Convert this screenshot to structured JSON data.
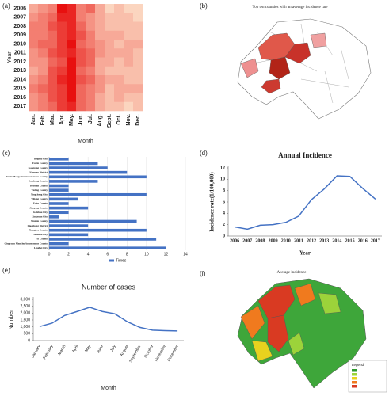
{
  "chart_data": [
    {
      "type": "heatmap",
      "panel": "(a)",
      "xlabel": "Month",
      "ylabel": "Year",
      "x": [
        "Jan.",
        "Feb.",
        "Mar.",
        "Apr.",
        "May.",
        "Jun.",
        "Jul.",
        "Aug.",
        "Sept.",
        "Oct.",
        "Nov.",
        "Dec."
      ],
      "y": [
        "2006",
        "2007",
        "2008",
        "2009",
        "2010",
        "2011",
        "2012",
        "2013",
        "2014",
        "2015",
        "2016",
        "2017"
      ],
      "z": [
        [
          3,
          4,
          5,
          10,
          9,
          5,
          6,
          3,
          1,
          2,
          1,
          1
        ],
        [
          4,
          5,
          6,
          9,
          9,
          5,
          4,
          3,
          2,
          2,
          2,
          1
        ],
        [
          5,
          5,
          7,
          8,
          9,
          6,
          4,
          3,
          2,
          2,
          2,
          2
        ],
        [
          5,
          5,
          6,
          8,
          9,
          7,
          5,
          3,
          3,
          3,
          2,
          2
        ],
        [
          5,
          6,
          6,
          8,
          10,
          6,
          5,
          4,
          3,
          2,
          3,
          3
        ],
        [
          4,
          5,
          7,
          8,
          9,
          7,
          6,
          4,
          3,
          3,
          3,
          2
        ],
        [
          4,
          4,
          6,
          7,
          10,
          7,
          6,
          3,
          3,
          2,
          3,
          2
        ],
        [
          3,
          4,
          7,
          8,
          10,
          6,
          5,
          3,
          2,
          2,
          2,
          2
        ],
        [
          4,
          5,
          7,
          9,
          10,
          7,
          6,
          4,
          3,
          3,
          2,
          2
        ],
        [
          5,
          6,
          7,
          8,
          10,
          6,
          5,
          4,
          2,
          3,
          3,
          3
        ],
        [
          4,
          5,
          7,
          8,
          10,
          6,
          5,
          3,
          2,
          3,
          2,
          2
        ],
        [
          4,
          5,
          6,
          8,
          9,
          6,
          5,
          3,
          2,
          2,
          1,
          2
        ]
      ],
      "zlim": [
        0,
        10
      ],
      "colors": [
        "#fdebd2",
        "#e8100f"
      ]
    },
    {
      "type": "hbar",
      "panel": "(c)",
      "categories": [
        "Beipiao City",
        "Fuxin County",
        "Kangping County",
        "Nanpiao District",
        "Fuxin Mongolian Autonomous County",
        "Suizhong County",
        "Heishan County",
        "Tieling County",
        "Xingcheng City",
        "Yiliang County",
        "Faku County",
        "Jianping County",
        "Gaizhou City",
        "Lingyuan City",
        "Xinmin County",
        "Liaozhong District",
        "Zhangwu County",
        "Beizhen City",
        "Yi County",
        "Qingyuan Manchu Autonomous County",
        "Lingbei City"
      ],
      "series": [
        {
          "name": "Times",
          "color": "#4472c4",
          "values": [
            2,
            5,
            6,
            8,
            10,
            5,
            2,
            2,
            10,
            3,
            2,
            4,
            2,
            1,
            9,
            4,
            10,
            4,
            11,
            2,
            12
          ]
        }
      ],
      "xlim": [
        0,
        14
      ],
      "xticks": [
        0,
        2,
        4,
        6,
        8,
        10,
        12,
        14
      ],
      "grid": true
    },
    {
      "type": "line",
      "panel": "(d)",
      "title": "Annual Incidence",
      "xlabel": "Year",
      "ylabel": "Incidence rate(1/100,000)",
      "categories": [
        "2006",
        "2007",
        "2008",
        "2009",
        "2010",
        "2011",
        "2012",
        "2013",
        "2014",
        "2015",
        "2016",
        "2017"
      ],
      "values": [
        1.6,
        1.2,
        1.9,
        2.0,
        2.4,
        3.5,
        6.4,
        8.3,
        10.6,
        10.5,
        8.4,
        6.5
      ],
      "color": "#4472c4",
      "ylim": [
        0,
        12
      ],
      "yticks": [
        0,
        2,
        4,
        6,
        8,
        10,
        12
      ],
      "rotate_x": false
    },
    {
      "type": "line",
      "panel": "(e)",
      "title": "Number of cases",
      "xlabel": "Month",
      "ylabel": "Number",
      "categories": [
        "January",
        "February",
        "March",
        "April",
        "May",
        "June",
        "July",
        "August",
        "September",
        "October",
        "November",
        "December"
      ],
      "values": [
        1020,
        1270,
        1830,
        2120,
        2430,
        2120,
        1950,
        1370,
        960,
        760,
        720,
        700
      ],
      "color": "#4472c4",
      "ylim": [
        0,
        3000
      ],
      "yticks": [
        0,
        500,
        {
          "value": 1000,
          "label": "1,000"
        },
        {
          "value": 1500,
          "label": "1,500"
        },
        {
          "value": 2000,
          "label": "2,000"
        },
        {
          "value": 2500,
          "label": "2,500"
        },
        {
          "value": 3000,
          "label": "3,000"
        }
      ],
      "rotate_x": true
    }
  ],
  "maps": [
    {
      "panel": "(b)",
      "title": "Top ten counties with an average incidence rate"
    },
    {
      "panel": "(f)",
      "title": "Average incidence",
      "legend_title": "Legend"
    }
  ]
}
